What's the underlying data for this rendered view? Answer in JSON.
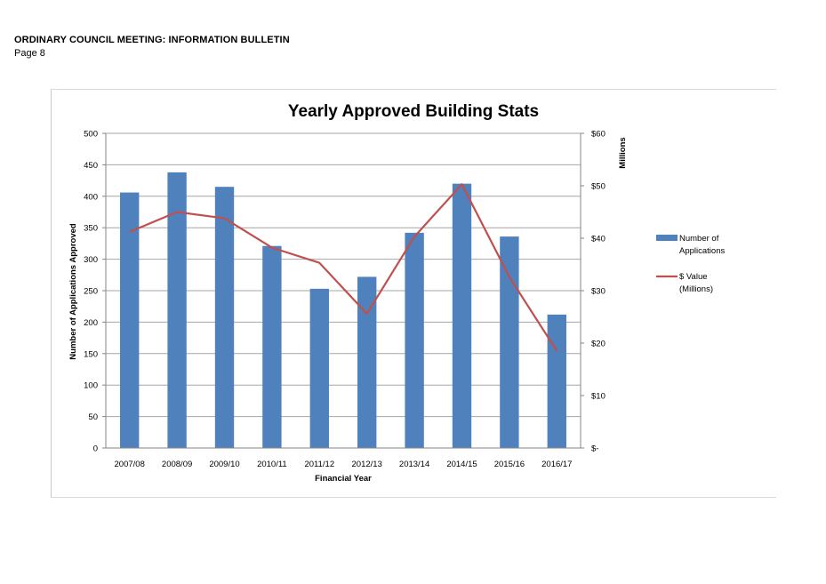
{
  "header": {
    "title": "ORDINARY COUNCIL MEETING: INFORMATION BULLETIN",
    "page": "Page 8"
  },
  "colors": {
    "bars": "#4f81bd",
    "line": "#c0504d",
    "grid": "#a6a6a6"
  },
  "chart_data": {
    "type": "bar",
    "title": "Yearly Approved Building Stats",
    "xlabel": "Financial  Year",
    "ylabel": "Number of Applications Approved",
    "y2label": "Millions",
    "categories": [
      "2007/08",
      "2008/09",
      "2009/10",
      "2010/11",
      "2011/12",
      "2012/13",
      "2013/14",
      "2014/15",
      "2015/16",
      "2016/17"
    ],
    "ylim": [
      0,
      500
    ],
    "y2lim": [
      0,
      60
    ],
    "yticks": [
      "0",
      "50",
      "100",
      "150",
      "200",
      "250",
      "300",
      "350",
      "400",
      "450",
      "500"
    ],
    "y2ticks": [
      "$-",
      "$10",
      "$20",
      "$30",
      "$40",
      "$50",
      "$60"
    ],
    "grid": true,
    "legend_position": "right",
    "series": [
      {
        "name": "Number of Applications",
        "legend_lines": [
          "Number of",
          "Applications"
        ],
        "type": "bar",
        "axis": "left",
        "values": [
          406,
          438,
          415,
          321,
          253,
          272,
          342,
          420,
          336,
          212
        ]
      },
      {
        "name": "$ Value (Millions)",
        "legend_lines": [
          "$ Value",
          "(Millions)"
        ],
        "type": "line",
        "axis": "right",
        "values": [
          41.2,
          45.0,
          43.8,
          38.2,
          35.3,
          25.6,
          40.3,
          50.3,
          32.6,
          18.5
        ]
      }
    ]
  }
}
